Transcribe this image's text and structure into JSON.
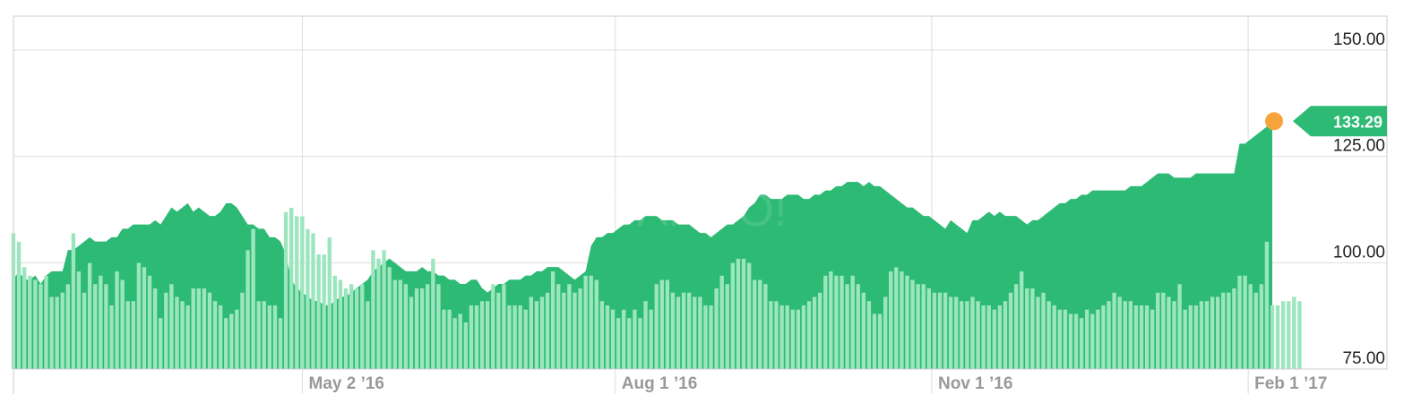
{
  "chart_data": {
    "type": "area",
    "y_ticks": [
      "150.00",
      "125.00",
      "100.00",
      "75.00"
    ],
    "y_tick_values": [
      150,
      125,
      100,
      75
    ],
    "ylim": [
      75,
      158
    ],
    "x_ticks": [
      "May 2 ’16",
      "Aug 1 ’16",
      "Nov 1 ’16",
      "Feb 1 ’17"
    ],
    "x_tick_dates": [
      "2016-05-02",
      "2016-08-01",
      "2016-11-01",
      "2017-02-01"
    ],
    "x_range": [
      "2016-02-08",
      "2017-02-08"
    ],
    "last_price": "133.29",
    "last_value": 133.29,
    "grid": true,
    "watermark": "YAHOO!",
    "colors": {
      "area": "#2dba74",
      "volume": "#9be6bd",
      "marker": "#f7a33c",
      "grid": "#dddddd"
    },
    "series": [
      {
        "values": [
          96,
          98,
          96,
          96,
          97,
          95,
          97,
          98,
          98,
          98,
          103,
          103,
          104,
          105,
          106,
          105,
          105,
          105,
          106,
          106,
          108,
          108,
          109,
          109,
          109,
          109,
          110,
          109,
          111,
          113,
          112,
          113,
          114,
          112,
          113,
          112,
          111,
          111,
          112,
          114,
          114,
          113,
          111,
          109,
          109,
          108,
          108,
          106,
          106,
          105,
          102,
          96,
          94,
          93,
          92,
          91,
          91,
          90,
          90,
          91,
          92,
          92,
          93,
          94,
          95,
          96,
          98,
          99,
          100,
          101,
          100,
          99,
          98,
          98,
          98,
          99,
          98,
          98,
          97,
          97,
          96,
          96,
          95,
          95,
          96,
          96,
          94,
          93,
          94,
          95,
          95,
          96,
          96,
          96,
          97,
          97,
          98,
          98,
          99,
          99,
          99,
          98,
          97,
          96,
          97,
          98,
          104,
          106,
          106,
          107,
          107,
          108,
          109,
          109,
          110,
          110,
          111,
          111,
          111,
          110,
          110,
          110,
          109,
          109,
          109,
          108,
          107,
          107,
          106,
          107,
          108,
          109,
          109,
          110,
          111,
          113,
          114,
          116,
          116,
          115,
          115,
          115,
          116,
          116,
          116,
          115,
          115,
          116,
          116,
          117,
          117,
          118,
          118,
          119,
          119,
          119,
          118,
          119,
          118,
          118,
          117,
          116,
          115,
          114,
          113,
          113,
          112,
          111,
          111,
          110,
          109,
          108,
          110,
          109,
          108,
          107,
          110,
          110,
          111,
          112,
          111,
          112,
          111,
          111,
          111,
          110,
          109,
          110,
          110,
          111,
          112,
          113,
          114,
          114,
          115,
          115,
          116,
          116,
          117,
          117,
          117,
          117,
          117,
          117,
          117,
          118,
          118,
          118,
          119,
          120,
          121,
          121,
          121,
          120,
          120,
          120,
          120,
          121,
          121,
          121,
          121,
          121,
          121,
          121,
          121,
          128,
          128,
          129,
          130,
          131,
          132,
          133.29
        ]
      },
      {
        "values": [
          32,
          30,
          24,
          22,
          21,
          20,
          22,
          17,
          17,
          18,
          20,
          32,
          23,
          18,
          25,
          20,
          22,
          20,
          15,
          23,
          21,
          16,
          16,
          25,
          24,
          22,
          19,
          12,
          18,
          20,
          17,
          16,
          15,
          19,
          19,
          19,
          18,
          16,
          15,
          12,
          13,
          14,
          18,
          28,
          33,
          16,
          16,
          15,
          15,
          12,
          37,
          38,
          36,
          36,
          33,
          32,
          27,
          27,
          31,
          22,
          21,
          19,
          20,
          19,
          20,
          16,
          28,
          26,
          28,
          24,
          21,
          21,
          20,
          17,
          19,
          19,
          20,
          26,
          20,
          14,
          14,
          12,
          13,
          11,
          15,
          15,
          16,
          16,
          20,
          18,
          20,
          15,
          15,
          15,
          14,
          17,
          16,
          17,
          18,
          23,
          20,
          18,
          20,
          18,
          19,
          22,
          22,
          21,
          16,
          15,
          14,
          12,
          14,
          12,
          14,
          12,
          16,
          14,
          20,
          21,
          21,
          18,
          17,
          18,
          18,
          17,
          17,
          15,
          15,
          19,
          22,
          20,
          25,
          26,
          26,
          25,
          21,
          21,
          20,
          16,
          16,
          15,
          15,
          14,
          14,
          15,
          16,
          17,
          18,
          22,
          23,
          22,
          22,
          20,
          22,
          20,
          18,
          16,
          13,
          13,
          17,
          23,
          24,
          23,
          22,
          21,
          20,
          20,
          19,
          18,
          18,
          18,
          17,
          17,
          16,
          16,
          17,
          16,
          15,
          15,
          14,
          15,
          16,
          18,
          20,
          23,
          19,
          19,
          17,
          18,
          16,
          15,
          14,
          14,
          13,
          13,
          12,
          14,
          13,
          14,
          15,
          16,
          18,
          17,
          16,
          16,
          15,
          15,
          15,
          14,
          18,
          18,
          17,
          16,
          20,
          14,
          15,
          15,
          16,
          16,
          17,
          17,
          18,
          18,
          19,
          22,
          22,
          20,
          18,
          20,
          30,
          15,
          15,
          16,
          16,
          17,
          16
        ]
      }
    ],
    "volume_relative_scale": true
  }
}
